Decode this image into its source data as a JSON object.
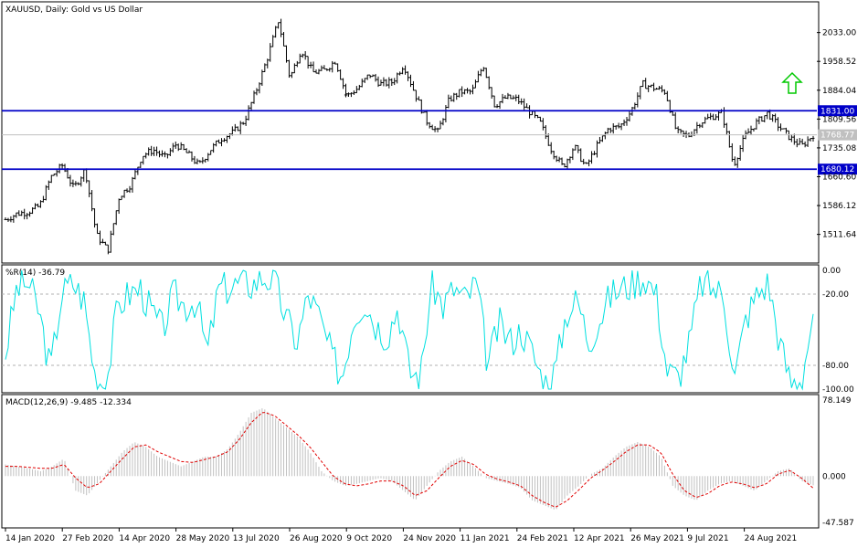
{
  "chart_data": [
    {
      "type": "ohlc",
      "title": "XAUUSD, Daily:  Gold vs US Dollar",
      "ylim": [
        1440,
        2110
      ],
      "y_ticks": [
        2033.0,
        1958.52,
        1884.04,
        1809.56,
        1735.08,
        1660.6,
        1586.12,
        1511.64
      ],
      "x_ticks": [
        "14 Jan 2020",
        "27 Feb 2020",
        "14 Apr 2020",
        "28 May 2020",
        "13 Jul 2020",
        "26 Aug 2020",
        "9 Oct 2020",
        "24 Nov 2020",
        "11 Jan 2021",
        "24 Feb 2021",
        "12 Apr 2021",
        "26 May 2021",
        "9 Jul 2021",
        "24 Aug 2021"
      ],
      "horizontal_lines": [
        {
          "price": 1831.0,
          "label": "1831.00",
          "color": "#0000c8"
        },
        {
          "price": 1680.12,
          "label": "1680.12",
          "color": "#0000c8"
        }
      ],
      "current_price": {
        "price": 1768.77,
        "label": "1768.77",
        "color": "#c0c0c0"
      },
      "arrow": {
        "direction": "up",
        "color": "#00c800",
        "date": "15 Sep 2021"
      },
      "closes": [
        {
          "date": "14 Jan 2020",
          "close": 1550
        },
        {
          "date": "24 Jan 2020",
          "close": 1565
        },
        {
          "date": "7 Feb 2020",
          "close": 1570
        },
        {
          "date": "14 Feb 2020",
          "close": 1585
        },
        {
          "date": "24 Feb 2020",
          "close": 1660
        },
        {
          "date": "27 Feb 2020",
          "close": 1690
        },
        {
          "date": "2 Mar 2020",
          "close": 1630
        },
        {
          "date": "9 Mar 2020",
          "close": 1680
        },
        {
          "date": "16 Mar 2020",
          "close": 1510
        },
        {
          "date": "19 Mar 2020",
          "close": 1470
        },
        {
          "date": "25 Mar 2020",
          "close": 1610
        },
        {
          "date": "3 Apr 2020",
          "close": 1640
        },
        {
          "date": "14 Apr 2020",
          "close": 1715
        },
        {
          "date": "24 Apr 2020",
          "close": 1730
        },
        {
          "date": "6 May 2020",
          "close": 1710
        },
        {
          "date": "18 May 2020",
          "close": 1745
        },
        {
          "date": "28 May 2020",
          "close": 1720
        },
        {
          "date": "5 Jun 2020",
          "close": 1690
        },
        {
          "date": "15 Jun 2020",
          "close": 1730
        },
        {
          "date": "25 Jun 2020",
          "close": 1760
        },
        {
          "date": "3 Jul 2020",
          "close": 1775
        },
        {
          "date": "13 Jul 2020",
          "close": 1805
        },
        {
          "date": "23 Jul 2020",
          "close": 1880
        },
        {
          "date": "29 Jul 2020",
          "close": 1965
        },
        {
          "date": "6 Aug 2020",
          "close": 2065
        },
        {
          "date": "11 Aug 2020",
          "close": 1915
        },
        {
          "date": "18 Aug 2020",
          "close": 1990
        },
        {
          "date": "26 Aug 2020",
          "close": 1930
        },
        {
          "date": "4 Sep 2020",
          "close": 1935
        },
        {
          "date": "14 Sep 2020",
          "close": 1960
        },
        {
          "date": "24 Sep 2020",
          "close": 1868
        },
        {
          "date": "30 Sep 2020",
          "close": 1890
        },
        {
          "date": "9 Oct 2020",
          "close": 1925
        },
        {
          "date": "19 Oct 2020",
          "close": 1900
        },
        {
          "date": "26 Oct 2020",
          "close": 1905
        },
        {
          "date": "5 Nov 2020",
          "close": 1950
        },
        {
          "date": "12 Nov 2020",
          "close": 1875
        },
        {
          "date": "24 Nov 2020",
          "close": 1805
        },
        {
          "date": "30 Nov 2020",
          "close": 1776
        },
        {
          "date": "8 Dec 2020",
          "close": 1860
        },
        {
          "date": "18 Dec 2020",
          "close": 1880
        },
        {
          "date": "28 Dec 2020",
          "close": 1880
        },
        {
          "date": "6 Jan 2021",
          "close": 1950
        },
        {
          "date": "11 Jan 2021",
          "close": 1845
        },
        {
          "date": "21 Jan 2021",
          "close": 1865
        },
        {
          "date": "1 Feb 2021",
          "close": 1860
        },
        {
          "date": "11 Feb 2021",
          "close": 1830
        },
        {
          "date": "24 Feb 2021",
          "close": 1800
        },
        {
          "date": "3 Mar 2021",
          "close": 1730
        },
        {
          "date": "8 Mar 2021",
          "close": 1685
        },
        {
          "date": "17 Mar 2021",
          "close": 1740
        },
        {
          "date": "31 Mar 2021",
          "close": 1685
        },
        {
          "date": "12 Apr 2021",
          "close": 1740
        },
        {
          "date": "22 Apr 2021",
          "close": 1785
        },
        {
          "date": "3 May 2021",
          "close": 1790
        },
        {
          "date": "13 May 2021",
          "close": 1830
        },
        {
          "date": "26 May 2021",
          "close": 1900
        },
        {
          "date": "4 Jun 2021",
          "close": 1890
        },
        {
          "date": "11 Jun 2021",
          "close": 1880
        },
        {
          "date": "18 Jun 2021",
          "close": 1775
        },
        {
          "date": "29 Jun 2021",
          "close": 1765
        },
        {
          "date": "9 Jul 2021",
          "close": 1800
        },
        {
          "date": "19 Jul 2021",
          "close": 1815
        },
        {
          "date": "29 Jul 2021",
          "close": 1825
        },
        {
          "date": "9 Aug 2021",
          "close": 1690
        },
        {
          "date": "13 Aug 2021",
          "close": 1765
        },
        {
          "date": "24 Aug 2021",
          "close": 1800
        },
        {
          "date": "3 Sep 2021",
          "close": 1825
        },
        {
          "date": "10 Sep 2021",
          "close": 1790
        },
        {
          "date": "20 Sep 2021",
          "close": 1760
        },
        {
          "date": "28 Sep 2021",
          "close": 1740
        },
        {
          "date": "1 Oct 2021",
          "close": 1768.77
        }
      ]
    },
    {
      "type": "line",
      "title": "%R(14) -36.79",
      "ylim": [
        -100,
        0
      ],
      "y_ticks": [
        "0.00",
        "-20.00",
        "-80.00",
        "-100.00"
      ],
      "levels": [
        -20,
        -80
      ],
      "series": [
        {
          "color": "#00e0e0",
          "values": [
            -70,
            -15,
            -10,
            -35,
            -85,
            -20,
            -10,
            -25,
            -90,
            -95,
            -30,
            -20,
            -15,
            -35,
            -50,
            -20,
            -30,
            -25,
            -70,
            -15,
            -15,
            -10,
            -12,
            -5,
            -10,
            -40,
            -60,
            -20,
            -40,
            -70,
            -90,
            -40,
            -25,
            -45,
            -55,
            -30,
            -85,
            -90,
            -10,
            -30,
            -15,
            -25,
            -10,
            -80,
            -45,
            -60,
            -50,
            -70,
            -95,
            -85,
            -35,
            -25,
            -60,
            -40,
            -20,
            -15,
            -10,
            -5,
            -20,
            -85,
            -90,
            -60,
            -10,
            -15,
            -20,
            -90,
            -40,
            -20,
            -10,
            -60,
            -95,
            -90,
            -36.79
          ]
        }
      ]
    },
    {
      "type": "bar+line",
      "title": "MACD(12,26,9) -9.485 -12.334",
      "ylim": [
        -47.587,
        78.149
      ],
      "y_ticks": [
        "78.149",
        "0.000",
        "-47.587"
      ],
      "macd": [
        12,
        10,
        8,
        5,
        10,
        18,
        -15,
        -20,
        -5,
        10,
        25,
        35,
        30,
        20,
        15,
        10,
        15,
        20,
        20,
        28,
        45,
        65,
        70,
        60,
        50,
        40,
        25,
        5,
        -5,
        -10,
        -8,
        -5,
        -2,
        -5,
        -15,
        -25,
        -10,
        5,
        15,
        20,
        10,
        -2,
        -5,
        -8,
        -12,
        -25,
        -30,
        -35,
        -20,
        -10,
        2,
        8,
        20,
        30,
        35,
        30,
        20,
        -10,
        -20,
        -25,
        -15,
        -8,
        -5,
        -10,
        -15,
        -5,
        5,
        8,
        -5,
        -9.485
      ],
      "signal": [
        10,
        10,
        9,
        8,
        8,
        12,
        -2,
        -12,
        -8,
        5,
        18,
        30,
        32,
        25,
        20,
        15,
        14,
        17,
        20,
        25,
        38,
        55,
        66,
        62,
        52,
        42,
        30,
        15,
        0,
        -8,
        -10,
        -8,
        -5,
        -5,
        -10,
        -20,
        -15,
        -2,
        10,
        16,
        12,
        2,
        -3,
        -6,
        -10,
        -20,
        -27,
        -32,
        -25,
        -14,
        -2,
        6,
        15,
        25,
        32,
        32,
        24,
        2,
        -15,
        -22,
        -18,
        -10,
        -6,
        -8,
        -12,
        -8,
        2,
        6,
        -2,
        -12.334
      ],
      "bar_color": "#c0c0c0",
      "signal_color": "#e00000"
    }
  ]
}
